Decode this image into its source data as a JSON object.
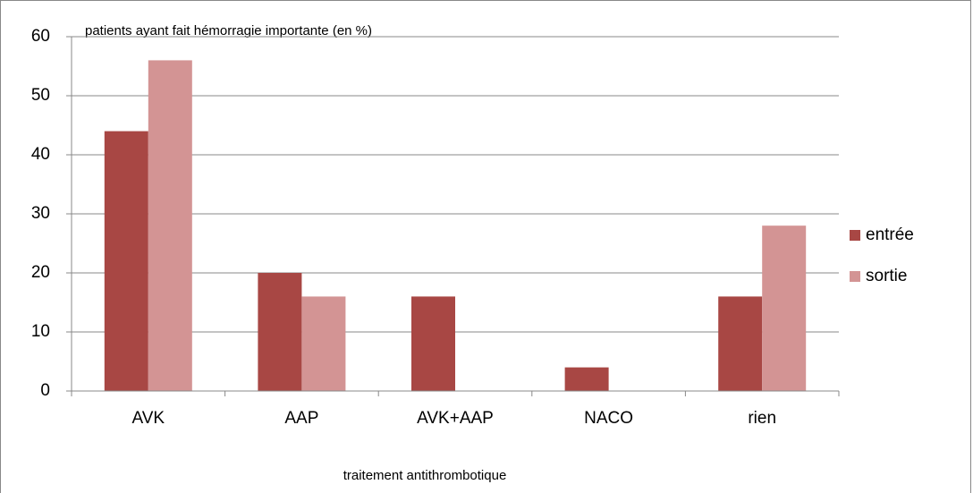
{
  "chart_data": {
    "type": "bar",
    "title": "patients ayant fait hémorragie importante (en %)",
    "x_label": "traitement antithrombotique",
    "categories": [
      "AVK",
      "AAP",
      "AVK+AAP",
      "NACO",
      "rien"
    ],
    "series": [
      {
        "name": "entrée",
        "color": "#a84744",
        "values": [
          44,
          20,
          16,
          4,
          16
        ]
      },
      {
        "name": "sortie",
        "color": "#d39494",
        "values": [
          56,
          16,
          0,
          0,
          28
        ]
      }
    ],
    "ylim": [
      0,
      60
    ],
    "yticks": [
      0,
      10,
      20,
      30,
      40,
      50,
      60
    ],
    "grid": true,
    "legend": "right"
  }
}
